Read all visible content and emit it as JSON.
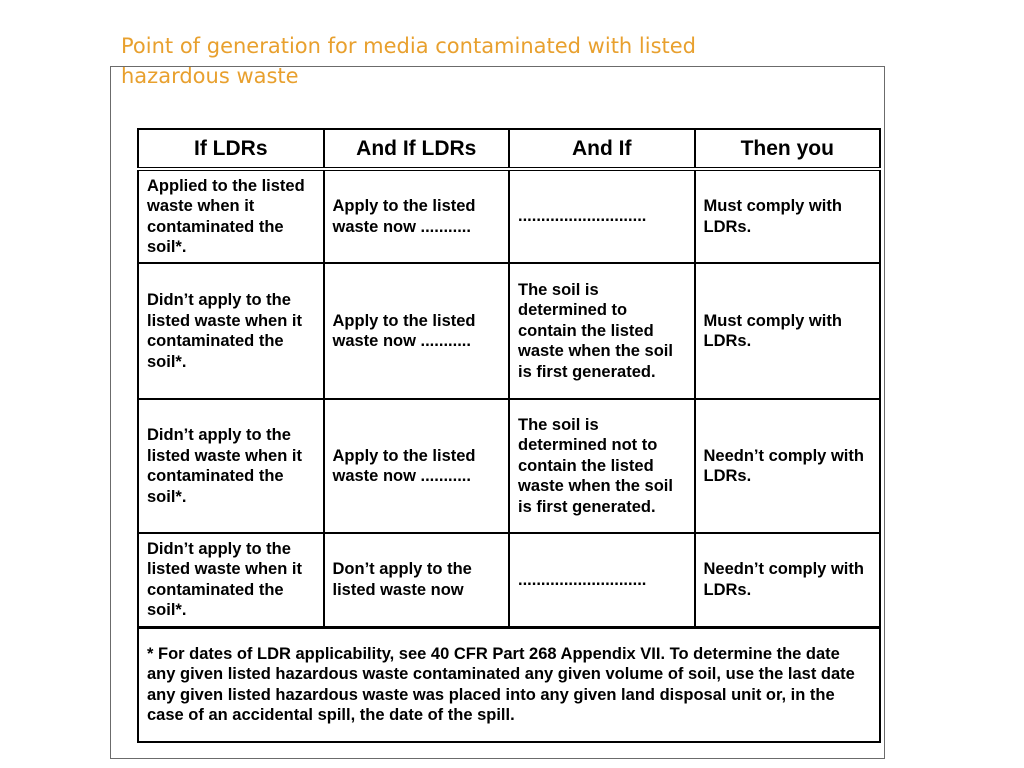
{
  "title": "Point of generation for media contaminated with listed hazardous waste",
  "table": {
    "headers": [
      "If LDRs",
      "And If LDRs",
      "And If",
      "Then you"
    ],
    "rows": [
      [
        "Applied to the listed waste when it contaminated the soil*.",
        "Apply to the listed waste now ...........",
        "............................",
        "Must comply with LDRs."
      ],
      [
        "Didn’t apply to the listed waste when it contaminated the soil*.",
        "Apply to the listed waste now ...........",
        "The soil is determined to contain the listed waste when the soil is first generated.",
        "Must comply with LDRs."
      ],
      [
        "Didn’t apply to the listed waste when it contaminated the soil*.",
        "Apply to the listed waste now ...........",
        "The soil is determined not to contain the listed waste when the soil is first generated.",
        "Needn’t comply with LDRs."
      ],
      [
        "Didn’t apply to the listed waste when it contaminated the soil*.",
        "Don’t apply to the listed waste now",
        "............................",
        "Needn’t comply with LDRs."
      ]
    ],
    "footnote": "* For dates of LDR applicability, see 40 CFR Part 268 Appendix VII.  To determine the date any given listed hazardous waste contaminated any given volume of soil, use the last date any given listed hazardous waste was placed into any given land disposal unit or, in the case of an accidental spill, the date of the spill."
  },
  "colors": {
    "title": "#E8A02E",
    "border": "#000000",
    "frame": "#6b6b6b"
  }
}
